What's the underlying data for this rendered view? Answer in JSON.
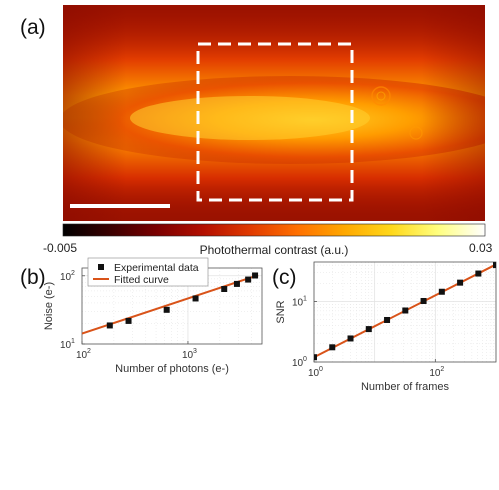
{
  "panel_labels": [
    "(a)",
    "(b)",
    "(c)"
  ],
  "colors": {
    "marker": "#111111",
    "fit_line": "#d95319",
    "grid": "#e2e2e2",
    "colormap": [
      "#000000",
      "#3a0000",
      "#7a0000",
      "#b30f00",
      "#e03a00",
      "#ff7000",
      "#ffa800",
      "#ffd81a",
      "#ffff80",
      "#ffffff"
    ]
  },
  "colorbar": {
    "label": "Photothermal contrast (a.u.)",
    "min_label": "-0.005",
    "max_label": "0.03"
  },
  "chart_data": [
    {
      "panel": "(a)",
      "type": "heatmap",
      "title": "",
      "colorbar_range": [
        -0.005,
        0.03
      ],
      "annotations": [
        "dashed white rectangle (region of interest)",
        "white scale bar"
      ]
    },
    {
      "panel": "(b)",
      "type": "scatter",
      "xscale": "log",
      "yscale": "log",
      "xlabel": "Number of photons (e-)",
      "ylabel": "Noise (e-)",
      "xlim": [
        100,
        5000
      ],
      "ylim": [
        10,
        130
      ],
      "xticks": [
        {
          "base": "10",
          "exp": "2",
          "value": 100
        },
        {
          "base": "10",
          "exp": "3",
          "value": 1000
        }
      ],
      "yticks": [
        {
          "base": "10",
          "exp": "1",
          "value": 10
        },
        {
          "base": "10",
          "exp": "2",
          "value": 100
        }
      ],
      "grid": true,
      "legend_position": "top-left",
      "series": [
        {
          "name": "Experimental data",
          "kind": "markers",
          "x": [
            183,
            275,
            630,
            1180,
            2200,
            2900,
            3700,
            4300
          ],
          "y": [
            18.7,
            21.8,
            31.7,
            46.5,
            64,
            76,
            88,
            101
          ]
        },
        {
          "name": "Fitted curve",
          "kind": "line",
          "x": [
            100,
            4600
          ],
          "y": [
            14.2,
            102
          ]
        }
      ]
    },
    {
      "panel": "(c)",
      "type": "scatter",
      "xscale": "log",
      "yscale": "log",
      "xlabel": "Number of frames",
      "ylabel": "SNR",
      "xlim": [
        1,
        1000
      ],
      "ylim": [
        1,
        45
      ],
      "xticks": [
        {
          "base": "10",
          "exp": "0",
          "value": 1
        },
        {
          "base": "10",
          "exp": "2",
          "value": 100
        }
      ],
      "yticks": [
        {
          "base": "10",
          "exp": "0",
          "value": 1
        },
        {
          "base": "10",
          "exp": "1",
          "value": 10
        }
      ],
      "grid": true,
      "series": [
        {
          "name": "",
          "kind": "markers",
          "x": [
            1,
            2,
            4,
            8,
            16,
            32,
            64,
            128,
            256,
            512,
            1000
          ],
          "y": [
            1.2,
            1.75,
            2.45,
            3.5,
            4.95,
            7.1,
            10.2,
            14.5,
            20.5,
            29,
            40
          ]
        },
        {
          "name": "",
          "kind": "line",
          "x": [
            1,
            1000
          ],
          "y": [
            1.2,
            41
          ]
        }
      ]
    }
  ]
}
